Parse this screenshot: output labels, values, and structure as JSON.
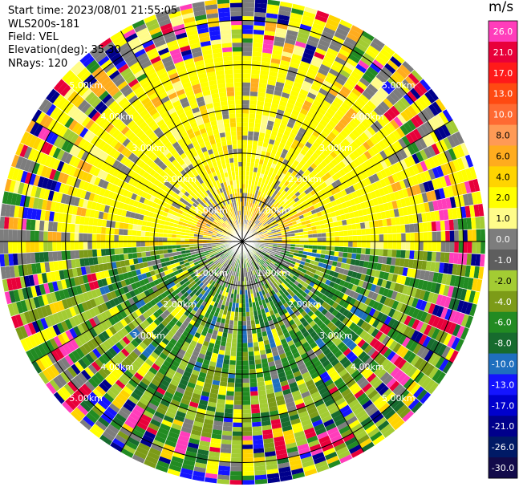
{
  "header": {
    "start_time": "Start time: 2023/08/01 21:55:05",
    "instrument": "WLS200s-181",
    "field": "Field: VEL",
    "elevation": "Elevation(deg): 35.30",
    "nrays": "NRays: 120"
  },
  "colorbar": {
    "unit": "m/s",
    "ticks": [
      "26.0",
      "21.0",
      "17.0",
      "13.0",
      "10.0",
      "8.0",
      "6.0",
      "4.0",
      "2.0",
      "1.0",
      "0.0",
      "-1.0",
      "-2.0",
      "-4.0",
      "-6.0",
      "-8.0",
      "-10.0",
      "-13.0",
      "-17.0",
      "-21.0",
      "-26.0",
      "-30.0"
    ],
    "colors": [
      "#ff3dbb",
      "#e8003a",
      "#ff1a1a",
      "#ff4a12",
      "#ff6a32",
      "#ff9a55",
      "#ffac1e",
      "#ffd400",
      "#ffff00",
      "#fffc8a",
      "#7d7d7d",
      "#5e5e5e",
      "#a3cc33",
      "#7c9b18",
      "#228b22",
      "#176b2e",
      "#1f6fbf",
      "#1414ff",
      "#0000cd",
      "#00008b",
      "#001a66",
      "#120a4a"
    ]
  },
  "chart_data": {
    "type": "ppi-polar-scan",
    "variable": "VEL",
    "units": "m/s",
    "rays": 120,
    "ring_labels": [
      "1.00km",
      "2.00km",
      "3.00km",
      "4.00km",
      "5.00km"
    ],
    "max_range_km": 5.5
  }
}
